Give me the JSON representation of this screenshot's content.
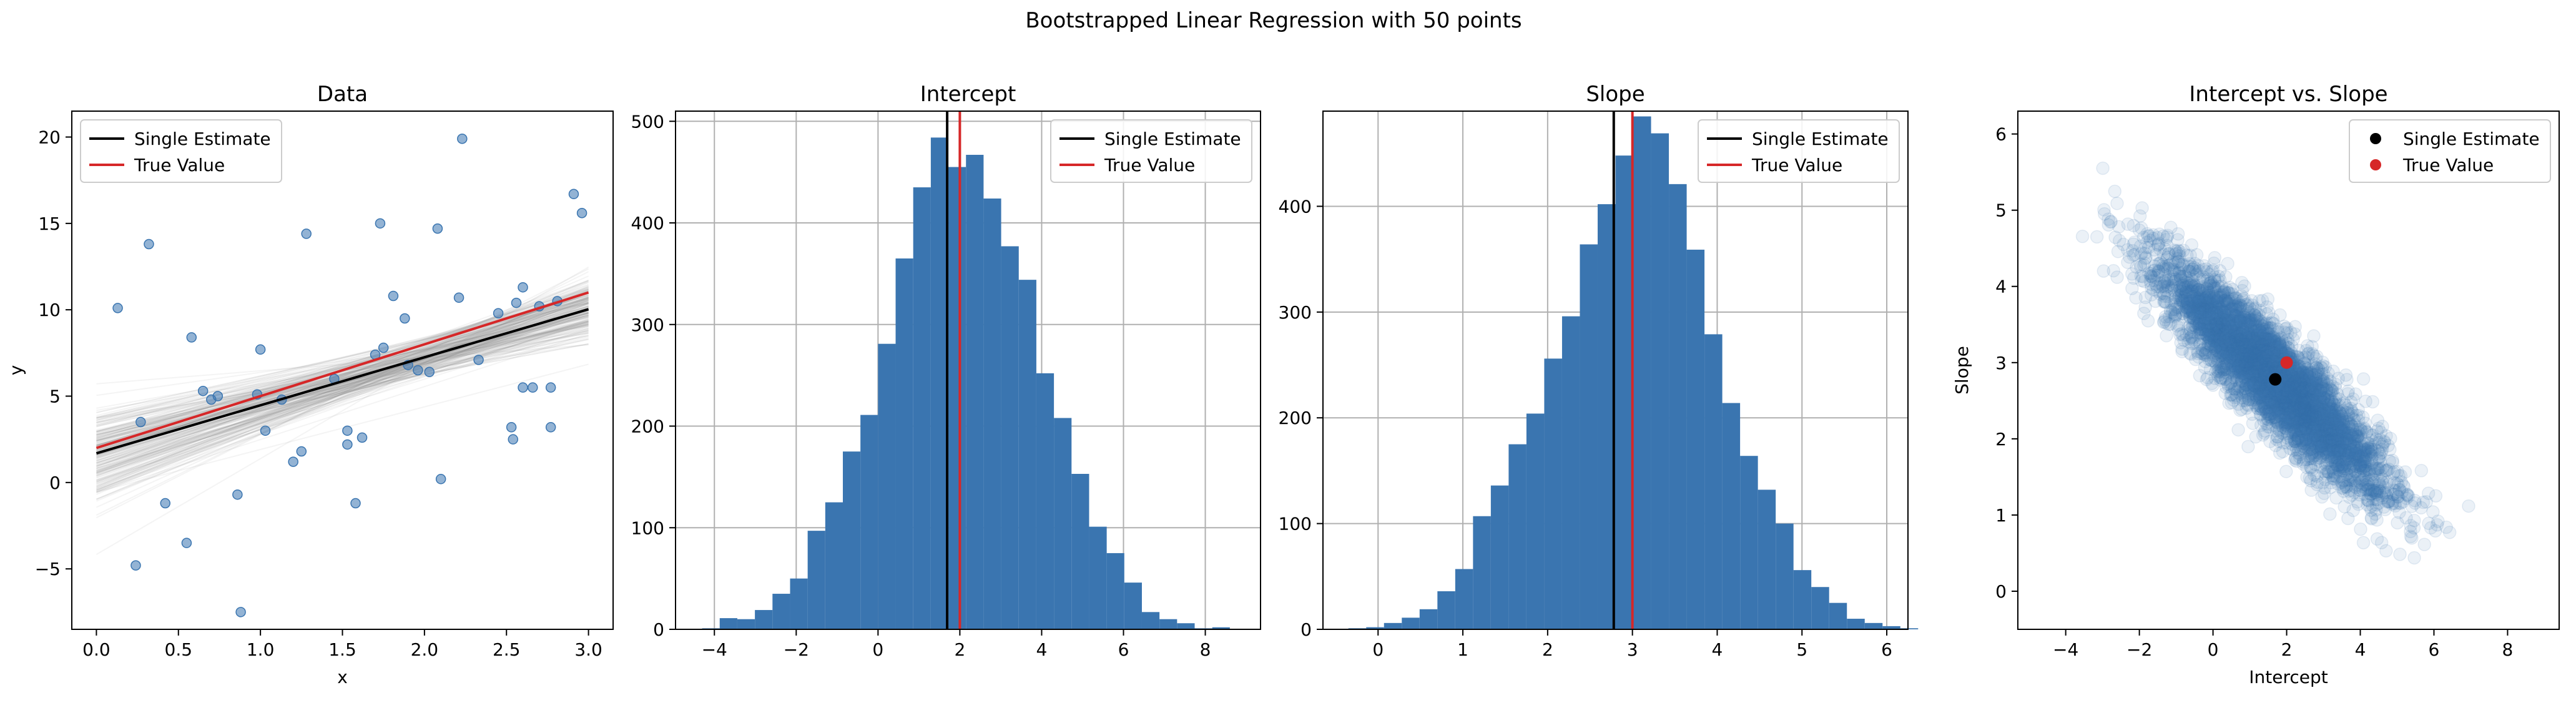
{
  "figure": {
    "suptitle": "Bootstrapped Linear Regression with 50 points"
  },
  "legend_labels": {
    "single": "Single Estimate",
    "true": "True Value"
  },
  "colors": {
    "blue": "#3a75b0",
    "red": "#d62728",
    "black": "#000000",
    "bootstrap_line": "#808080",
    "grid": "#b0b0b0"
  },
  "chart_data": [
    {
      "type": "scatter",
      "title": "Data",
      "xlabel": "x",
      "ylabel": "y",
      "xlim": [
        -0.15,
        3.15
      ],
      "ylim": [
        -8.5,
        21.5
      ],
      "xticks": [
        0.0,
        0.5,
        1.0,
        1.5,
        2.0,
        2.5,
        3.0
      ],
      "xtick_labels": [
        "0.0",
        "0.5",
        "1.0",
        "1.5",
        "2.0",
        "2.5",
        "3.0"
      ],
      "yticks": [
        -5,
        0,
        5,
        10,
        15,
        20
      ],
      "ytick_labels": [
        "−5",
        "0",
        "5",
        "10",
        "15",
        "20"
      ],
      "grid": false,
      "legend": {
        "position": "upper-left",
        "entries": [
          {
            "name": "Single Estimate",
            "color": "#000000",
            "marker": "line"
          },
          {
            "name": "True Value",
            "color": "#d62728",
            "marker": "line"
          }
        ]
      },
      "points": [
        [
          0.13,
          10.1
        ],
        [
          0.24,
          -4.8
        ],
        [
          0.27,
          3.5
        ],
        [
          0.32,
          13.8
        ],
        [
          0.42,
          -1.2
        ],
        [
          0.55,
          -3.5
        ],
        [
          0.58,
          8.4
        ],
        [
          0.65,
          5.3
        ],
        [
          0.7,
          4.8
        ],
        [
          0.86,
          -0.7
        ],
        [
          0.88,
          -7.5
        ],
        [
          0.98,
          5.1
        ],
        [
          1.0,
          7.7
        ],
        [
          1.03,
          3.0
        ],
        [
          1.13,
          4.8
        ],
        [
          1.2,
          1.2
        ],
        [
          1.25,
          1.8
        ],
        [
          1.28,
          14.4
        ],
        [
          1.53,
          3.0
        ],
        [
          1.53,
          2.2
        ],
        [
          1.58,
          -1.2
        ],
        [
          1.62,
          2.6
        ],
        [
          1.7,
          7.4
        ],
        [
          1.73,
          15.0
        ],
        [
          1.81,
          10.8
        ],
        [
          1.88,
          9.5
        ],
        [
          1.9,
          6.8
        ],
        [
          1.96,
          6.5
        ],
        [
          2.08,
          14.7
        ],
        [
          2.1,
          0.2
        ],
        [
          2.21,
          10.7
        ],
        [
          2.23,
          19.9
        ],
        [
          2.33,
          7.1
        ],
        [
          2.53,
          3.2
        ],
        [
          2.54,
          2.5
        ],
        [
          2.56,
          10.4
        ],
        [
          2.6,
          11.3
        ],
        [
          2.6,
          5.5
        ],
        [
          2.66,
          5.5
        ],
        [
          2.7,
          10.2
        ],
        [
          2.77,
          5.5
        ],
        [
          2.77,
          3.2
        ],
        [
          2.81,
          10.5
        ],
        [
          2.91,
          16.7
        ],
        [
          2.96,
          15.6
        ],
        [
          1.45,
          6.0
        ],
        [
          0.74,
          5.0
        ],
        [
          2.45,
          9.8
        ],
        [
          2.03,
          6.4
        ],
        [
          1.75,
          7.8
        ]
      ],
      "single_estimate": {
        "intercept": 1.69,
        "slope": 2.78
      },
      "true_value": {
        "intercept": 2.0,
        "slope": 3.0
      },
      "bootstrap_lines": {
        "x_range": [
          0,
          3
        ],
        "intercept_mean": 1.69,
        "slope_mean": 2.78,
        "intercept_sd": 1.45,
        "slope_sd": 0.72,
        "correlation": -0.9,
        "count": 220
      }
    },
    {
      "type": "bar",
      "title": "Intercept",
      "xlim": [
        -4.95,
        9.35
      ],
      "ylim": [
        0,
        510
      ],
      "xticks": [
        -4,
        -2,
        0,
        2,
        4,
        6,
        8
      ],
      "xtick_labels": [
        "−4",
        "−2",
        "0",
        "2",
        "4",
        "6",
        "8"
      ],
      "yticks": [
        0,
        100,
        200,
        300,
        400,
        500
      ],
      "ytick_labels": [
        "0",
        "100",
        "200",
        "300",
        "400",
        "500"
      ],
      "grid": true,
      "legend": {
        "position": "upper-right",
        "entries": [
          {
            "name": "Single Estimate",
            "color": "#000000",
            "marker": "line"
          },
          {
            "name": "True Value",
            "color": "#d62728",
            "marker": "line"
          }
        ]
      },
      "bin_start": -4.3,
      "bin_width": 0.43,
      "counts": [
        1,
        11,
        10,
        19,
        35,
        50,
        97,
        125,
        175,
        211,
        281,
        365,
        435,
        484,
        455,
        467,
        424,
        377,
        344,
        252,
        208,
        153,
        101,
        75,
        46,
        17,
        10,
        6,
        1,
        2
      ],
      "single_estimate": 1.69,
      "true_value": 2.0
    },
    {
      "type": "bar",
      "title": "Slope",
      "xlim": [
        -0.65,
        6.25
      ],
      "ylim": [
        0,
        490
      ],
      "xticks": [
        0,
        1,
        2,
        3,
        4,
        5,
        6
      ],
      "xtick_labels": [
        "0",
        "1",
        "2",
        "3",
        "4",
        "5",
        "6"
      ],
      "yticks": [
        0,
        100,
        200,
        300,
        400
      ],
      "ytick_labels": [
        "0",
        "100",
        "200",
        "300",
        "400"
      ],
      "grid": true,
      "legend": {
        "position": "upper-right",
        "entries": [
          {
            "name": "Single Estimate",
            "color": "#000000",
            "marker": "line"
          },
          {
            "name": "True Value",
            "color": "#d62728",
            "marker": "line"
          }
        ]
      },
      "bin_start": -0.35,
      "bin_width": 0.21,
      "counts": [
        1,
        2,
        6,
        11,
        19,
        36,
        57,
        107,
        136,
        175,
        204,
        256,
        296,
        364,
        402,
        448,
        485,
        469,
        421,
        359,
        279,
        214,
        164,
        132,
        100,
        56,
        40,
        25,
        10,
        6,
        3,
        1
      ],
      "single_estimate": 2.78,
      "true_value": 3.0
    },
    {
      "type": "scatter",
      "title": "Intercept vs. Slope",
      "xlabel": "Intercept",
      "ylabel": "Slope",
      "xlim": [
        -5.3,
        9.4
      ],
      "ylim": [
        -0.5,
        6.3
      ],
      "xticks": [
        -4,
        -2,
        0,
        2,
        4,
        6,
        8
      ],
      "xtick_labels": [
        "−4",
        "−2",
        "0",
        "2",
        "4",
        "6",
        "8"
      ],
      "yticks": [
        0,
        1,
        2,
        3,
        4,
        5,
        6
      ],
      "ytick_labels": [
        "0",
        "1",
        "2",
        "3",
        "4",
        "5",
        "6"
      ],
      "grid": false,
      "legend": {
        "position": "upper-right",
        "entries": [
          {
            "name": "Single Estimate",
            "color": "#000000",
            "marker": "dot"
          },
          {
            "name": "True Value",
            "color": "#d62728",
            "marker": "dot"
          }
        ]
      },
      "cloud": {
        "intercept_mean": 1.69,
        "slope_mean": 2.78,
        "intercept_sd": 1.45,
        "slope_sd": 0.72,
        "correlation": -0.9,
        "count": 5000
      },
      "single_estimate": [
        1.69,
        2.78
      ],
      "true_value": [
        2.0,
        3.0
      ]
    }
  ]
}
